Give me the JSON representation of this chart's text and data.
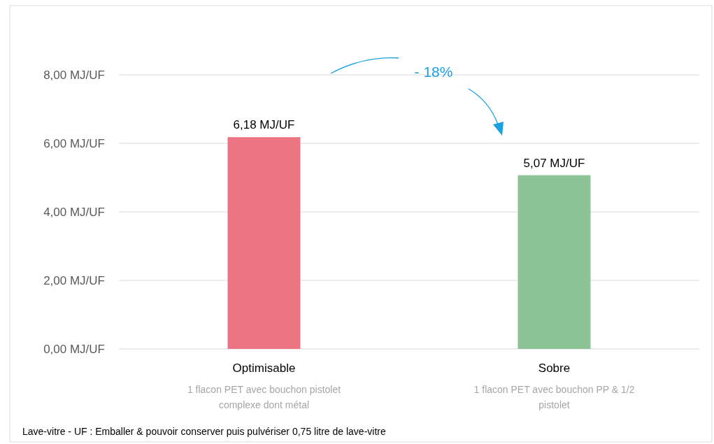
{
  "chart_data": {
    "type": "bar",
    "categories": [
      "Optimisable",
      "Sobre"
    ],
    "values": [
      6.18,
      5.07
    ],
    "colors": [
      "#ed7583",
      "#8dc497"
    ],
    "value_labels": [
      "6,18 MJ/UF",
      "5,07 MJ/UF"
    ],
    "ylim": [
      0,
      8
    ],
    "yticks": [
      {
        "value": 0,
        "label": "0,00 MJ/UF"
      },
      {
        "value": 2,
        "label": "2,00 MJ/UF"
      },
      {
        "value": 4,
        "label": "4,00 MJ/UF"
      },
      {
        "value": 6,
        "label": "6,00 MJ/UF"
      },
      {
        "value": 8,
        "label": "8,00 MJ/UF"
      }
    ],
    "grid": "y",
    "annotations": [
      "- 18%",
      "1 flacon PET avec bouchon pistolet complexe dont métal",
      "1 flacon PET avec bouchon PP & 1/2 pistolet",
      "Lave-vitre  - UF : Emballer & pouvoir conserver puis pulvériser 0,75 litre de lave-vitre"
    ]
  }
}
